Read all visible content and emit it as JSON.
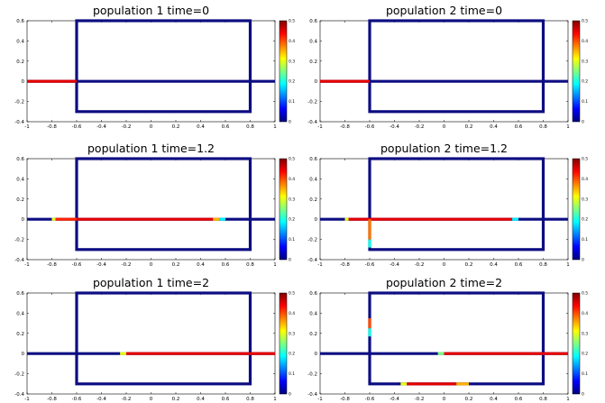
{
  "chart_data": [
    {
      "type": "line",
      "title": "population 1  time=0",
      "xlim": [
        -1,
        1
      ],
      "ylim": [
        -0.4,
        0.6
      ],
      "x_ticks": [
        "-1",
        "-0.8",
        "-0.6",
        "-0.4",
        "-0.2",
        "0",
        "0.2",
        "0.4",
        "0.6",
        "0.8",
        "1"
      ],
      "y_ticks": [
        "-0.4",
        "-0.2",
        "0",
        "0.2",
        "0.4",
        "0.6"
      ],
      "colorbar": {
        "range": [
          0,
          0.5
        ],
        "ticks": [
          "0",
          "0.1",
          "0.2",
          "0.3",
          "0.4",
          "0.5"
        ]
      },
      "network": {
        "rect_x": [
          -0.6,
          0.8
        ],
        "rect_y": [
          -0.3,
          0.6
        ],
        "axis_y": 0,
        "axis_x": [
          -1,
          1
        ]
      },
      "density": [
        {
          "edge": "x-axis",
          "from": -1,
          "to": -0.6,
          "value": 0.45
        }
      ]
    },
    {
      "type": "line",
      "title": "population 2 time=0",
      "xlim": [
        -1,
        1
      ],
      "ylim": [
        -0.4,
        0.6
      ],
      "x_ticks": [
        "-1",
        "-0.8",
        "-0.6",
        "-0.4",
        "-0.2",
        "0",
        "0.2",
        "0.4",
        "0.6",
        "0.8",
        "1"
      ],
      "y_ticks": [
        "-0.4",
        "-0.2",
        "0",
        "0.2",
        "0.4",
        "0.6"
      ],
      "colorbar": {
        "range": [
          0,
          0.5
        ],
        "ticks": [
          "0",
          "0.1",
          "0.2",
          "0.3",
          "0.4",
          "0.5"
        ]
      },
      "network": {
        "rect_x": [
          -0.6,
          0.8
        ],
        "rect_y": [
          -0.3,
          0.6
        ],
        "axis_y": 0,
        "axis_x": [
          -1,
          1
        ]
      },
      "density": [
        {
          "edge": "x-axis",
          "from": -1,
          "to": -0.6,
          "value": 0.45
        }
      ]
    },
    {
      "type": "line",
      "title": "population 1 time=1.2",
      "xlim": [
        -1,
        1
      ],
      "ylim": [
        -0.4,
        0.6
      ],
      "x_ticks": [
        "-1",
        "-0.8",
        "-0.6",
        "-0.4",
        "-0.2",
        "0",
        "0.2",
        "0.4",
        "0.6",
        "0.8",
        "1"
      ],
      "y_ticks": [
        "-0.4",
        "-0.2",
        "0",
        "0.2",
        "0.4",
        "0.6"
      ],
      "colorbar": {
        "range": [
          0,
          0.5
        ],
        "ticks": [
          "0",
          "0.1",
          "0.2",
          "0.3",
          "0.4",
          "0.5"
        ]
      },
      "network": {
        "rect_x": [
          -0.6,
          0.8
        ],
        "rect_y": [
          -0.3,
          0.6
        ],
        "axis_y": 0,
        "axis_x": [
          -1,
          1
        ]
      },
      "density": [
        {
          "edge": "x-axis",
          "from": -0.8,
          "to": -0.77,
          "value": 0.3
        },
        {
          "edge": "x-axis",
          "from": -0.77,
          "to": -0.6,
          "value": 0.42
        },
        {
          "edge": "x-axis",
          "from": -0.6,
          "to": 0.5,
          "value": 0.45
        },
        {
          "edge": "x-axis",
          "from": 0.5,
          "to": 0.55,
          "value": 0.35
        },
        {
          "edge": "x-axis",
          "from": 0.55,
          "to": 0.6,
          "value": 0.18
        }
      ]
    },
    {
      "type": "line",
      "title": "population 2 time=1.2",
      "xlim": [
        -1,
        1
      ],
      "ylim": [
        -0.4,
        0.6
      ],
      "x_ticks": [
        "-1",
        "-0.8",
        "-0.6",
        "-0.4",
        "-0.2",
        "0",
        "0.2",
        "0.4",
        "0.6",
        "0.8",
        "1"
      ],
      "y_ticks": [
        "-0.4",
        "-0.2",
        "0",
        "0.2",
        "0.4",
        "0.6"
      ],
      "colorbar": {
        "range": [
          0,
          0.5
        ],
        "ticks": [
          "0",
          "0.1",
          "0.2",
          "0.3",
          "0.4",
          "0.5"
        ]
      },
      "network": {
        "rect_x": [
          -0.6,
          0.8
        ],
        "rect_y": [
          -0.3,
          0.6
        ],
        "axis_y": 0,
        "axis_x": [
          -1,
          1
        ]
      },
      "density": [
        {
          "edge": "x-axis",
          "from": -0.8,
          "to": -0.77,
          "value": 0.3
        },
        {
          "edge": "x-axis",
          "from": -0.77,
          "to": -0.6,
          "value": 0.45
        },
        {
          "edge": "x-axis",
          "from": -0.6,
          "to": 0.55,
          "value": 0.45
        },
        {
          "edge": "x-axis",
          "from": 0.55,
          "to": 0.6,
          "value": 0.18
        },
        {
          "edge": "left-side",
          "from": 0,
          "to": -0.2,
          "value": 0.38
        },
        {
          "edge": "left-side",
          "from": -0.2,
          "to": -0.28,
          "value": 0.2
        }
      ]
    },
    {
      "type": "line",
      "title": "population 1 time=2",
      "xlim": [
        -1,
        1
      ],
      "ylim": [
        -0.4,
        0.6
      ],
      "x_ticks": [
        "-1",
        "-0.8",
        "-0.6",
        "-0.4",
        "-0.2",
        "0",
        "0.2",
        "0.4",
        "0.6",
        "0.8",
        "1"
      ],
      "y_ticks": [
        "-0.4",
        "-0.2",
        "0",
        "0.2",
        "0.4",
        "0.6"
      ],
      "colorbar": {
        "range": [
          0,
          0.5
        ],
        "ticks": [
          "0",
          "0.1",
          "0.2",
          "0.3",
          "0.4",
          "0.5"
        ]
      },
      "network": {
        "rect_x": [
          -0.6,
          0.8
        ],
        "rect_y": [
          -0.3,
          0.6
        ],
        "axis_y": 0,
        "axis_x": [
          -1,
          1
        ]
      },
      "density": [
        {
          "edge": "x-axis",
          "from": -0.25,
          "to": -0.2,
          "value": 0.3
        },
        {
          "edge": "x-axis",
          "from": -0.2,
          "to": 1,
          "value": 0.45
        }
      ]
    },
    {
      "type": "line",
      "title": "population 2 time=2",
      "xlim": [
        -1,
        1
      ],
      "ylim": [
        -0.4,
        0.6
      ],
      "x_ticks": [
        "-1",
        "-0.8",
        "-0.6",
        "-0.4",
        "-0.2",
        "0",
        "0.2",
        "0.4",
        "0.6",
        "0.8",
        "1"
      ],
      "y_ticks": [
        "-0.4",
        "-0.2",
        "0",
        "0.2",
        "0.4",
        "0.6"
      ],
      "colorbar": {
        "range": [
          0,
          0.5
        ],
        "ticks": [
          "0",
          "0.1",
          "0.2",
          "0.3",
          "0.4",
          "0.5"
        ]
      },
      "network": {
        "rect_x": [
          -0.6,
          0.8
        ],
        "rect_y": [
          -0.3,
          0.6
        ],
        "axis_y": 0,
        "axis_x": [
          -1,
          1
        ]
      },
      "density": [
        {
          "edge": "x-axis",
          "from": -0.05,
          "to": 0.0,
          "value": 0.25
        },
        {
          "edge": "x-axis",
          "from": 0.0,
          "to": 1,
          "value": 0.45
        },
        {
          "edge": "bottom-side",
          "from": -0.35,
          "to": -0.3,
          "value": 0.3
        },
        {
          "edge": "bottom-side",
          "from": -0.3,
          "to": 0.1,
          "value": 0.45
        },
        {
          "edge": "bottom-side",
          "from": 0.1,
          "to": 0.2,
          "value": 0.35
        },
        {
          "edge": "left-side",
          "from": 0.35,
          "to": 0.25,
          "value": 0.4
        },
        {
          "edge": "left-side",
          "from": 0.25,
          "to": 0.17,
          "value": 0.2
        }
      ]
    }
  ]
}
